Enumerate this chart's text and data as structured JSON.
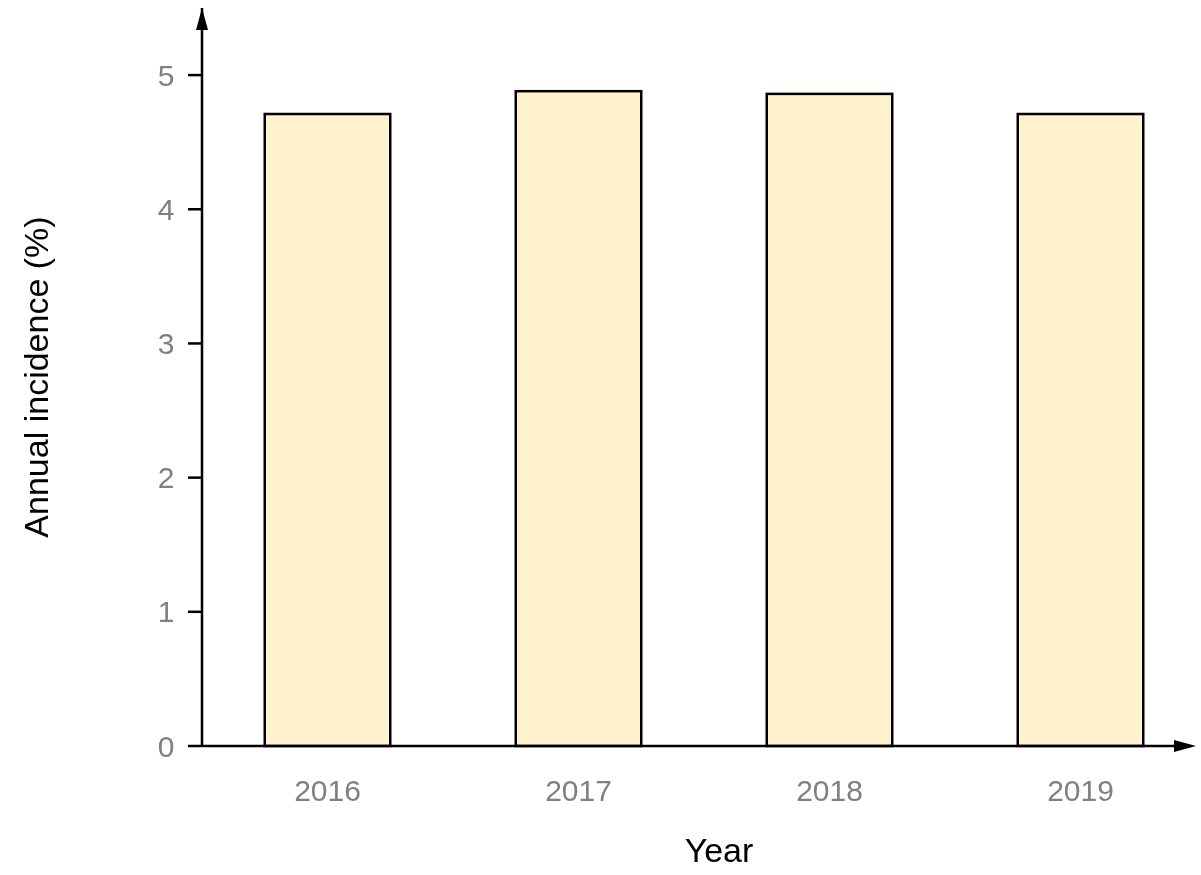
{
  "chart_data": {
    "type": "bar",
    "xlabel": "Year",
    "ylabel": "Annual incidence (%)",
    "categories": [
      "2016",
      "2017",
      "2018",
      "2019"
    ],
    "values": [
      4.71,
      4.88,
      4.86,
      4.71
    ],
    "color": "#fff2cc",
    "ylim": [
      0,
      5.5
    ],
    "yticks": [
      0,
      1,
      2,
      3,
      4,
      5
    ],
    "grid": false
  }
}
